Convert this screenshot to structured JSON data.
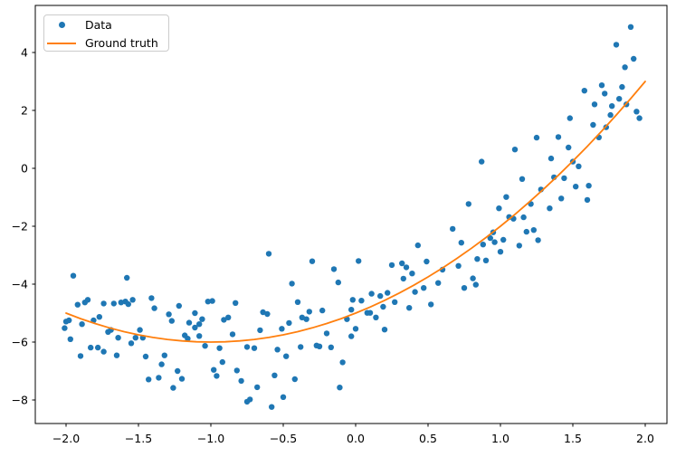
{
  "chart_data": {
    "type": "scatter",
    "title": "",
    "xlabel": "",
    "ylabel": "",
    "axes": {
      "xlim": [
        -2.2125,
        2.15
      ],
      "ylim": [
        -8.8125,
        5.625
      ],
      "grid": false,
      "background": "#ffffff",
      "spine_color": "#000000",
      "tick_color": "#000000",
      "tick_label_color": "#000000",
      "x_ticks": [
        {
          "value": -2.0,
          "label": "−2.0"
        },
        {
          "value": -1.5,
          "label": "−1.5"
        },
        {
          "value": -1.0,
          "label": "−1.0"
        },
        {
          "value": -0.5,
          "label": "−0.5"
        },
        {
          "value": 0.0,
          "label": "0.0"
        },
        {
          "value": 0.5,
          "label": "0.5"
        },
        {
          "value": 1.0,
          "label": "1.0"
        },
        {
          "value": 1.5,
          "label": "1.5"
        },
        {
          "value": 2.0,
          "label": "2.0"
        }
      ],
      "y_ticks": [
        {
          "value": 4,
          "label": "4"
        },
        {
          "value": 2,
          "label": "2"
        },
        {
          "value": 0,
          "label": "0"
        },
        {
          "value": -2,
          "label": "−2"
        },
        {
          "value": -4,
          "label": "−4"
        },
        {
          "value": -6,
          "label": "−6"
        },
        {
          "value": -8,
          "label": "−8"
        }
      ]
    },
    "legend": {
      "position": "upper left",
      "border_color": "#cccccc",
      "entries": [
        {
          "label": "Data",
          "type": "marker",
          "color": "#1f77b4"
        },
        {
          "label": "Ground truth",
          "type": "line",
          "color": "#ff7f0e"
        }
      ]
    },
    "series": [
      {
        "name": "Data",
        "type": "scatter",
        "color": "#1f77b4",
        "marker_radius": 3.2,
        "points": [
          [
            -2.01,
            -5.52
          ],
          [
            -2.0,
            -5.29
          ],
          [
            -1.98,
            -5.25
          ],
          [
            -1.97,
            -5.9
          ],
          [
            -1.95,
            -3.71
          ],
          [
            -1.92,
            -4.71
          ],
          [
            -1.9,
            -6.48
          ],
          [
            -1.89,
            -5.38
          ],
          [
            -1.87,
            -4.63
          ],
          [
            -1.85,
            -4.54
          ],
          [
            -1.83,
            -6.19
          ],
          [
            -1.81,
            -5.25
          ],
          [
            -1.78,
            -6.19
          ],
          [
            -1.77,
            -5.13
          ],
          [
            -1.74,
            -4.67
          ],
          [
            -1.74,
            -6.33
          ],
          [
            -1.71,
            -5.65
          ],
          [
            -1.69,
            -5.58
          ],
          [
            -1.67,
            -4.67
          ],
          [
            -1.65,
            -6.46
          ],
          [
            -1.64,
            -5.85
          ],
          [
            -1.62,
            -4.63
          ],
          [
            -1.59,
            -4.6
          ],
          [
            -1.58,
            -3.78
          ],
          [
            -1.57,
            -4.69
          ],
          [
            -1.55,
            -6.04
          ],
          [
            -1.54,
            -4.54
          ],
          [
            -1.52,
            -5.85
          ],
          [
            -1.49,
            -5.58
          ],
          [
            -1.47,
            -5.85
          ],
          [
            -1.45,
            -6.5
          ],
          [
            -1.43,
            -7.29
          ],
          [
            -1.41,
            -4.48
          ],
          [
            -1.39,
            -4.83
          ],
          [
            -1.36,
            -7.23
          ],
          [
            -1.34,
            -6.77
          ],
          [
            -1.32,
            -6.46
          ],
          [
            -1.29,
            -5.04
          ],
          [
            -1.27,
            -5.27
          ],
          [
            -1.26,
            -7.58
          ],
          [
            -1.23,
            -7.0
          ],
          [
            -1.22,
            -4.75
          ],
          [
            -1.2,
            -7.27
          ],
          [
            -1.18,
            -5.77
          ],
          [
            -1.16,
            -5.88
          ],
          [
            -1.15,
            -5.33
          ],
          [
            -1.11,
            -5.0
          ],
          [
            -1.11,
            -5.5
          ],
          [
            -1.08,
            -5.38
          ],
          [
            -1.08,
            -5.79
          ],
          [
            -1.06,
            -5.21
          ],
          [
            -1.04,
            -6.13
          ],
          [
            -1.02,
            -4.6
          ],
          [
            -0.99,
            -4.58
          ],
          [
            -0.98,
            -6.96
          ],
          [
            -0.96,
            -7.17
          ],
          [
            -0.94,
            -6.21
          ],
          [
            -0.92,
            -6.69
          ],
          [
            -0.91,
            -5.23
          ],
          [
            -0.88,
            -5.15
          ],
          [
            -0.85,
            -5.73
          ],
          [
            -0.83,
            -4.65
          ],
          [
            -0.82,
            -6.98
          ],
          [
            -0.79,
            -7.34
          ],
          [
            -0.75,
            -6.17
          ],
          [
            -0.75,
            -8.06
          ],
          [
            -0.73,
            -7.98
          ],
          [
            -0.7,
            -6.21
          ],
          [
            -0.68,
            -7.56
          ],
          [
            -0.66,
            -5.59
          ],
          [
            -0.64,
            -4.97
          ],
          [
            -0.61,
            -5.03
          ],
          [
            -0.6,
            -2.95
          ],
          [
            -0.58,
            -8.24
          ],
          [
            -0.56,
            -7.15
          ],
          [
            -0.54,
            -6.26
          ],
          [
            -0.51,
            -5.54
          ],
          [
            -0.5,
            -7.9
          ],
          [
            -0.48,
            -6.49
          ],
          [
            -0.46,
            -5.34
          ],
          [
            -0.44,
            -3.98
          ],
          [
            -0.42,
            -7.28
          ],
          [
            -0.4,
            -4.62
          ],
          [
            -0.38,
            -6.17
          ],
          [
            -0.37,
            -5.15
          ],
          [
            -0.34,
            -5.21
          ],
          [
            -0.32,
            -4.95
          ],
          [
            -0.3,
            -3.21
          ],
          [
            -0.27,
            -6.12
          ],
          [
            -0.25,
            -6.15
          ],
          [
            -0.23,
            -4.91
          ],
          [
            -0.2,
            -5.7
          ],
          [
            -0.17,
            -6.18
          ],
          [
            -0.15,
            -3.48
          ],
          [
            -0.12,
            -3.94
          ],
          [
            -0.11,
            -7.57
          ],
          [
            -0.09,
            -6.7
          ],
          [
            -0.06,
            -5.21
          ],
          [
            -0.03,
            -4.88
          ],
          [
            -0.03,
            -5.8
          ],
          [
            -0.02,
            -4.54
          ],
          [
            0.0,
            -5.54
          ],
          [
            0.02,
            -3.2
          ],
          [
            0.04,
            -4.57
          ],
          [
            0.08,
            -4.99
          ],
          [
            0.1,
            -4.99
          ],
          [
            0.11,
            -4.33
          ],
          [
            0.14,
            -5.15
          ],
          [
            0.17,
            -4.41
          ],
          [
            0.19,
            -4.78
          ],
          [
            0.2,
            -5.57
          ],
          [
            0.22,
            -4.3
          ],
          [
            0.25,
            -3.34
          ],
          [
            0.27,
            -4.62
          ],
          [
            0.32,
            -3.28
          ],
          [
            0.33,
            -3.81
          ],
          [
            0.35,
            -3.42
          ],
          [
            0.37,
            -4.82
          ],
          [
            0.39,
            -3.63
          ],
          [
            0.41,
            -4.27
          ],
          [
            0.43,
            -2.66
          ],
          [
            0.47,
            -4.13
          ],
          [
            0.49,
            -3.22
          ],
          [
            0.52,
            -4.7
          ],
          [
            0.57,
            -3.96
          ],
          [
            0.6,
            -3.5
          ],
          [
            0.67,
            -2.09
          ],
          [
            0.71,
            -3.37
          ],
          [
            0.73,
            -2.57
          ],
          [
            0.75,
            -4.13
          ],
          [
            0.81,
            -3.8
          ],
          [
            0.83,
            -4.02
          ],
          [
            0.84,
            -3.13
          ],
          [
            0.88,
            -2.63
          ],
          [
            0.9,
            -3.18
          ],
          [
            0.93,
            -2.41
          ],
          [
            0.95,
            -2.21
          ],
          [
            0.96,
            -2.55
          ],
          [
            1.0,
            -2.88
          ],
          [
            1.02,
            -2.47
          ],
          [
            1.06,
            -1.68
          ],
          [
            1.09,
            -1.74
          ],
          [
            1.13,
            -2.67
          ],
          [
            1.16,
            -1.69
          ],
          [
            1.18,
            -2.19
          ],
          [
            1.23,
            -2.13
          ],
          [
            1.26,
            -2.48
          ],
          [
            0.78,
            -1.23
          ],
          [
            0.87,
            0.23
          ],
          [
            0.99,
            -1.38
          ],
          [
            1.04,
            -0.99
          ],
          [
            1.1,
            0.65
          ],
          [
            1.15,
            -0.37
          ],
          [
            1.21,
            -1.23
          ],
          [
            1.25,
            1.06
          ],
          [
            1.28,
            -0.73
          ],
          [
            1.34,
            -1.38
          ],
          [
            1.35,
            0.34
          ],
          [
            1.37,
            -0.31
          ],
          [
            1.4,
            1.08
          ],
          [
            1.42,
            -1.04
          ],
          [
            1.44,
            -0.34
          ],
          [
            1.47,
            0.72
          ],
          [
            1.48,
            1.73
          ],
          [
            1.5,
            0.23
          ],
          [
            1.52,
            -0.63
          ],
          [
            1.54,
            0.07
          ],
          [
            1.58,
            2.68
          ],
          [
            1.6,
            -1.09
          ],
          [
            1.61,
            -0.6
          ],
          [
            1.64,
            1.5
          ],
          [
            1.65,
            2.21
          ],
          [
            1.68,
            1.07
          ],
          [
            1.7,
            2.87
          ],
          [
            1.72,
            2.58
          ],
          [
            1.73,
            1.42
          ],
          [
            1.76,
            1.84
          ],
          [
            1.77,
            2.15
          ],
          [
            1.8,
            4.27
          ],
          [
            1.82,
            2.4
          ],
          [
            1.84,
            2.81
          ],
          [
            1.86,
            3.49
          ],
          [
            1.87,
            2.21
          ],
          [
            1.9,
            4.88
          ],
          [
            1.92,
            3.78
          ],
          [
            1.94,
            1.96
          ],
          [
            1.96,
            1.73
          ]
        ]
      },
      {
        "name": "Ground truth",
        "type": "line",
        "color": "#ff7f0e",
        "line_width": 1.8,
        "points": [
          [
            -2.0,
            -5.0
          ],
          [
            -1.9,
            -5.19
          ],
          [
            -1.8,
            -5.36
          ],
          [
            -1.7,
            -5.51
          ],
          [
            -1.6,
            -5.64
          ],
          [
            -1.5,
            -5.75
          ],
          [
            -1.4,
            -5.84
          ],
          [
            -1.3,
            -5.91
          ],
          [
            -1.2,
            -5.96
          ],
          [
            -1.1,
            -5.99
          ],
          [
            -1.0,
            -6.0
          ],
          [
            -0.9,
            -5.99
          ],
          [
            -0.8,
            -5.96
          ],
          [
            -0.7,
            -5.91
          ],
          [
            -0.6,
            -5.84
          ],
          [
            -0.5,
            -5.75
          ],
          [
            -0.4,
            -5.64
          ],
          [
            -0.3,
            -5.51
          ],
          [
            -0.2,
            -5.36
          ],
          [
            -0.1,
            -5.19
          ],
          [
            0.0,
            -5.0
          ],
          [
            0.1,
            -4.79
          ],
          [
            0.2,
            -4.56
          ],
          [
            0.3,
            -4.31
          ],
          [
            0.4,
            -4.04
          ],
          [
            0.5,
            -3.75
          ],
          [
            0.6,
            -3.44
          ],
          [
            0.7,
            -3.11
          ],
          [
            0.8,
            -2.76
          ],
          [
            0.9,
            -2.39
          ],
          [
            1.0,
            -2.0
          ],
          [
            1.1,
            -1.59
          ],
          [
            1.2,
            -1.16
          ],
          [
            1.3,
            -0.71
          ],
          [
            1.4,
            -0.24
          ],
          [
            1.5,
            0.25
          ],
          [
            1.6,
            0.76
          ],
          [
            1.7,
            1.29
          ],
          [
            1.8,
            1.84
          ],
          [
            1.9,
            2.41
          ],
          [
            2.0,
            3.0
          ]
        ]
      }
    ]
  }
}
